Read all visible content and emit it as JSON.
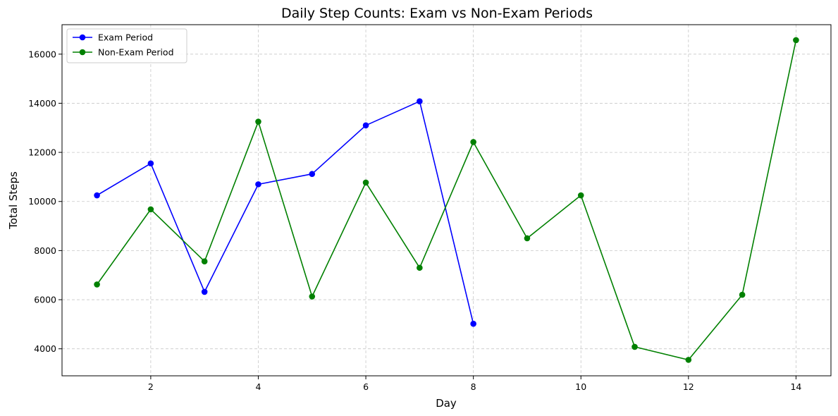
{
  "chart_data": {
    "type": "line",
    "title": "Daily Step Counts: Exam vs Non-Exam Periods",
    "xlabel": "Day",
    "ylabel": "Total Steps",
    "xlim": [
      0.35,
      14.65
    ],
    "ylim": [
      2900,
      17200
    ],
    "xticks": [
      2,
      4,
      6,
      8,
      10,
      12,
      14
    ],
    "yticks": [
      4000,
      6000,
      8000,
      10000,
      12000,
      14000,
      16000
    ],
    "grid": true,
    "legend_position": "top-left",
    "series": [
      {
        "name": "Exam Period",
        "color": "#0000ff",
        "marker": "circle",
        "x": [
          1,
          2,
          3,
          4,
          5,
          6,
          7,
          8
        ],
        "y": [
          10250,
          11550,
          6320,
          10700,
          11120,
          13100,
          14080,
          5020
        ]
      },
      {
        "name": "Non-Exam Period",
        "color": "#008000",
        "marker": "circle",
        "x": [
          1,
          2,
          3,
          4,
          5,
          6,
          7,
          8,
          9,
          10,
          11,
          12,
          13,
          14
        ],
        "y": [
          6620,
          9680,
          7560,
          13250,
          6130,
          10770,
          7300,
          12420,
          8500,
          10250,
          4080,
          3550,
          6200,
          16570
        ]
      }
    ]
  }
}
